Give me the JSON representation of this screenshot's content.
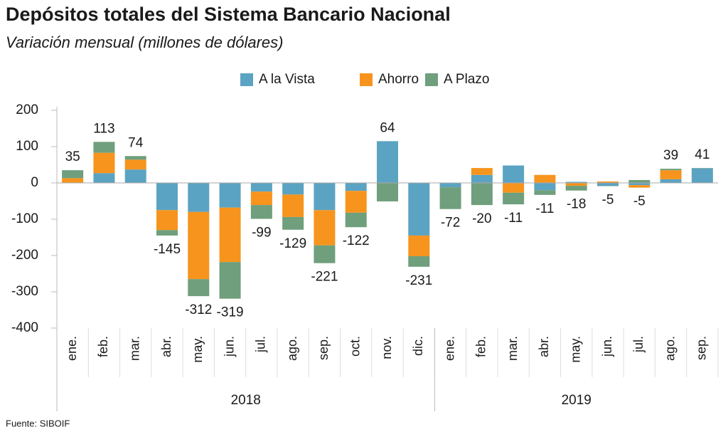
{
  "chart_data": {
    "type": "stacked_bar",
    "title": "Depósitos totales del Sistema Bancario Nacional",
    "subtitle": "Variación mensual (millones de dólares)",
    "source": "Fuente: SIBOIF",
    "groups": [
      {
        "name": "2018",
        "categories": [
          "ene.",
          "feb.",
          "mar.",
          "abr.",
          "may.",
          "jun.",
          "jul.",
          "ago.",
          "sep.",
          "oct.",
          "nov.",
          "dic."
        ]
      },
      {
        "name": "2019",
        "categories": [
          "ene.",
          "feb.",
          "mar.",
          "abr.",
          "may.",
          "jun.",
          "jul.",
          "ago.",
          "sep."
        ]
      }
    ],
    "series": [
      {
        "name": "A la Vista",
        "color": "#5ba3c2",
        "values": [
          0,
          27,
          37,
          -75,
          -80,
          -68,
          -24,
          -32,
          -75,
          -22,
          115,
          -145,
          -12,
          22,
          48,
          -20,
          3,
          -8,
          -6,
          10,
          40
        ]
      },
      {
        "name": "Ahorro",
        "color": "#f7941d",
        "values": [
          13,
          56,
          27,
          -55,
          -185,
          -150,
          -37,
          -62,
          -97,
          -60,
          0,
          -57,
          0,
          19,
          -27,
          22,
          -8,
          4,
          -7,
          25,
          0
        ]
      },
      {
        "name": "A Plazo",
        "color": "#6f9f7c",
        "values": [
          22,
          30,
          10,
          -15,
          -47,
          -101,
          -38,
          -35,
          -49,
          -40,
          -51,
          -29,
          -60,
          -61,
          -32,
          -13,
          -13,
          -1,
          8,
          4,
          1
        ]
      }
    ],
    "totals": [
      35,
      113,
      74,
      -145,
      -312,
      -319,
      -99,
      -129,
      -221,
      -122,
      64,
      -231,
      -72,
      -20,
      -11,
      -11,
      -18,
      -5,
      -5,
      39,
      41
    ],
    "ylim": [
      -400,
      200
    ],
    "yticks": [
      -400,
      -300,
      -200,
      -100,
      0,
      100,
      200
    ],
    "legend": "top"
  }
}
